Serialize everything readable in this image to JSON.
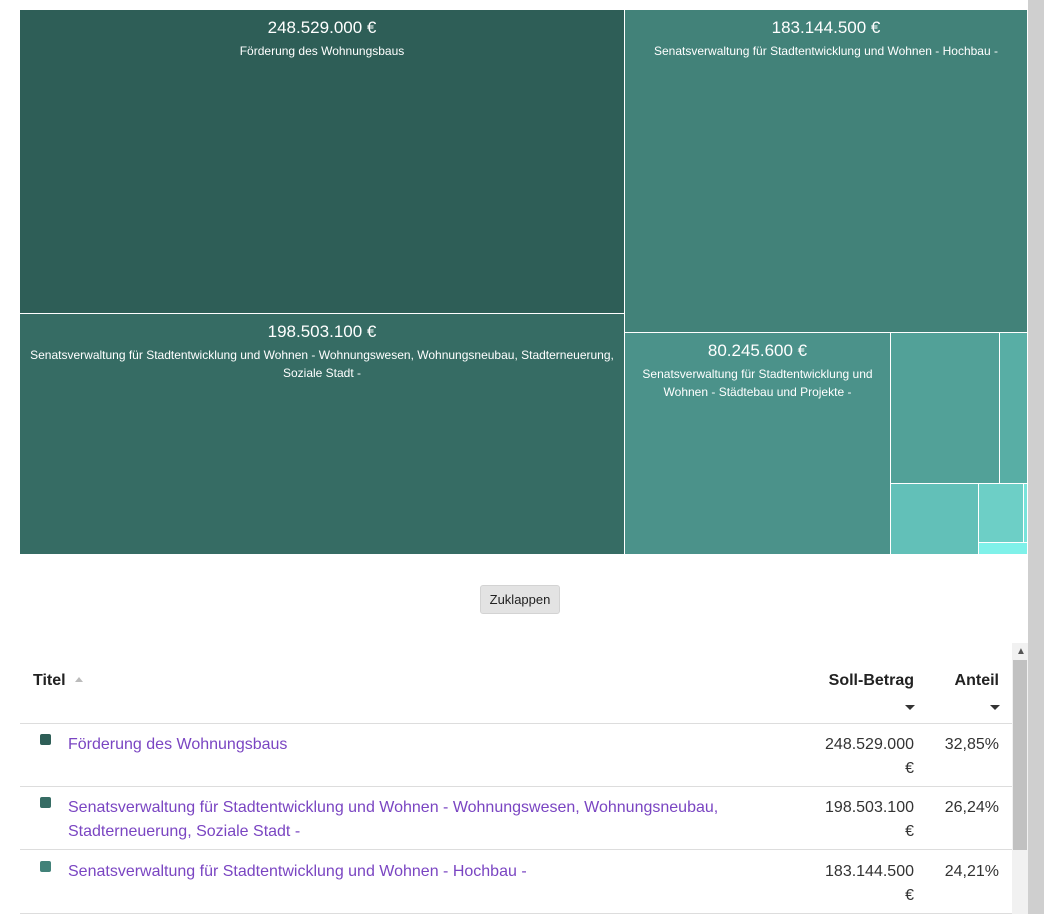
{
  "treemap": {
    "tiles": [
      {
        "amount": "248.529.000 €",
        "name": "Förderung des Wohnungsbaus",
        "color": "#2e5e57"
      },
      {
        "amount": "183.144.500 €",
        "name": "Senatsverwaltung für Stadtentwicklung und Wohnen - Hochbau -",
        "color": "#428279"
      },
      {
        "amount": "198.503.100 €",
        "name": "Senatsverwaltung für Stadtentwicklung und Wohnen - Wohnungswesen, Wohnungsneubau, Stadterneuerung, Soziale Stadt -",
        "color": "#366c64"
      },
      {
        "amount": "80.245.600 €",
        "name": "Senatsverwaltung für Stadtentwicklung und Wohnen - Städtebau und Projekte -",
        "color": "#4b928a"
      }
    ],
    "small_tile_colors": [
      "#52a198",
      "#58aea5",
      "#62c0b8",
      "#6dcfc6",
      "#79e3da",
      "#7ff1e9"
    ]
  },
  "collapse_button": "Zuklappen",
  "table": {
    "headers": {
      "title": "Titel",
      "amount": "Soll-Betrag",
      "share": "Anteil"
    },
    "rows": [
      {
        "title": "Förderung des Wohnungsbaus",
        "amount": "248.529.000 €",
        "share": "32,85%",
        "color": "#2e5e57"
      },
      {
        "title": "Senatsverwaltung für Stadtentwicklung und Wohnen - Wohnungswesen, Wohnungsneubau, Stadterneuerung, Soziale Stadt -",
        "amount": "198.503.100 €",
        "share": "26,24%",
        "color": "#366c64"
      },
      {
        "title": "Senatsverwaltung für Stadtentwicklung und Wohnen - Hochbau -",
        "amount": "183.144.500 €",
        "share": "24,21%",
        "color": "#428279"
      }
    ]
  }
}
